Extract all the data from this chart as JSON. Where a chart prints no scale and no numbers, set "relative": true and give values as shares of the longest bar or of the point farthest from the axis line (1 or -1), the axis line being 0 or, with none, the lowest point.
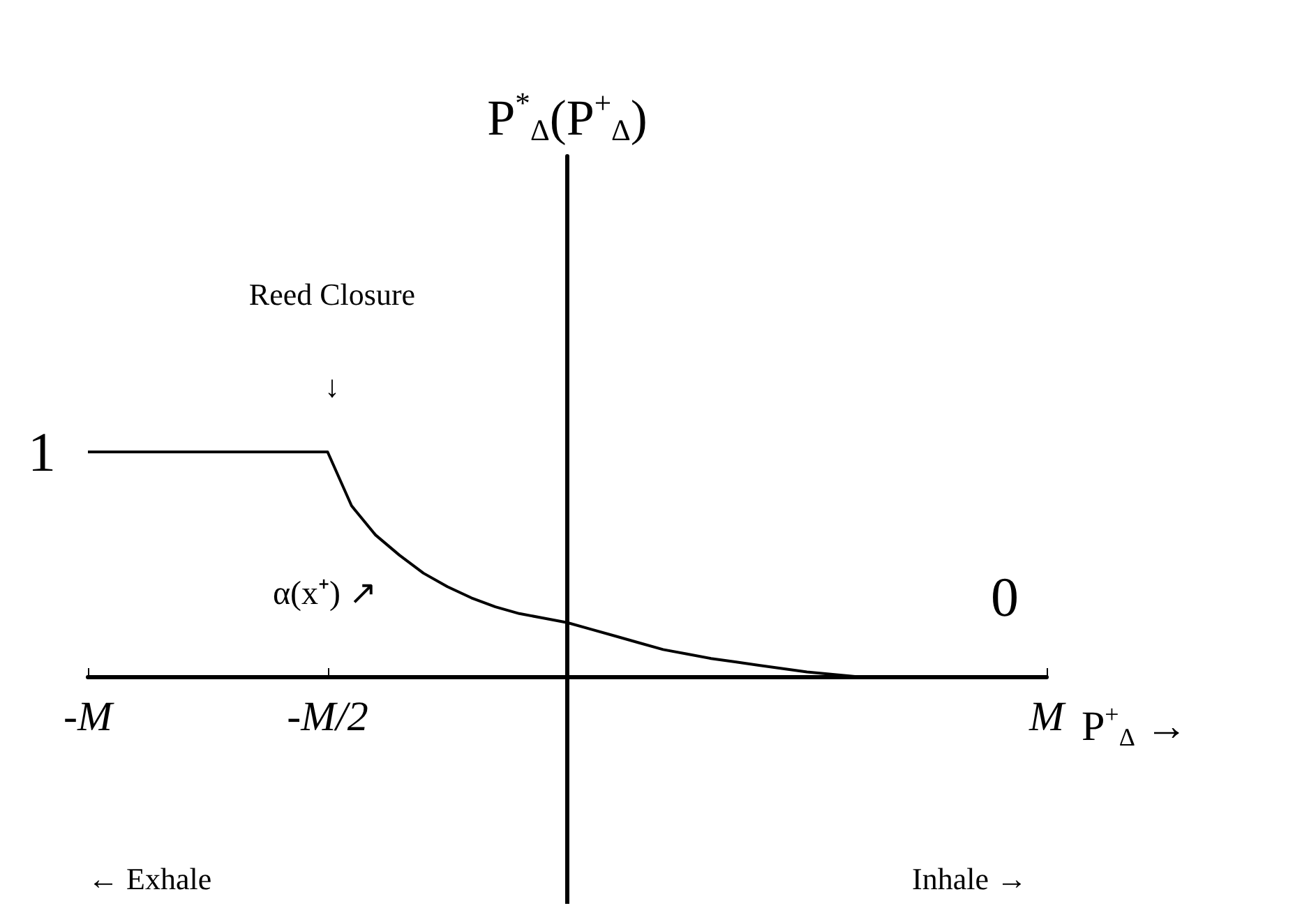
{
  "chart_data": {
    "type": "line",
    "relative": true,
    "xlabel": "P$^{+}$$_{Δ}$ →",
    "categories": [
      "-M",
      null,
      null,
      null,
      null,
      null,
      null,
      null,
      null,
      null,
      "-M/2",
      null,
      null,
      null,
      null,
      null,
      null,
      null,
      null,
      null,
      null,
      null,
      null,
      null,
      null,
      null,
      null,
      null,
      null,
      null,
      null,
      null,
      null,
      null,
      null,
      null,
      null,
      null,
      null,
      null,
      "M"
    ],
    "series": [
      {
        "color": "#000000",
        "values": [
          1,
          1,
          1,
          1,
          1,
          1,
          1,
          1,
          1,
          1,
          1,
          0.76,
          0.63,
          0.54,
          0.46,
          0.4,
          0.35,
          0.31,
          0.28,
          0.26,
          0.24,
          0.21,
          0.18,
          0.15,
          0.12,
          0.1,
          0.08,
          0.065,
          0.05,
          0.035,
          0.02,
          0.01,
          0,
          null,
          null,
          null,
          null,
          null,
          null,
          null,
          null
        ]
      }
    ],
    "annotations": [
      "Reed Closure\n↓",
      "α(x⁺) ↗",
      "1",
      "0",
      "← Exhale",
      "Inhale →",
      "P$^{*}$$_{Δ}$(P$^{+}$$_{Δ}$)"
    ],
    "marker": "none",
    "line_style": "solid"
  }
}
